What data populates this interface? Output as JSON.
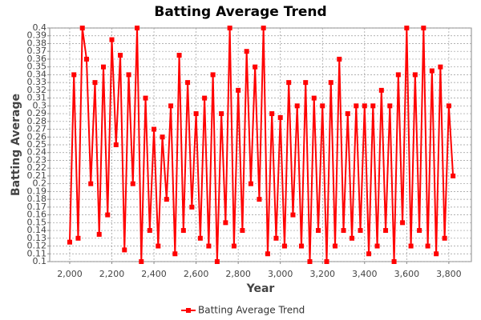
{
  "chart_data": {
    "type": "line",
    "title": "Batting Average Trend",
    "xlabel": "Year",
    "ylabel": "Batting Average",
    "x": [
      2000,
      2020,
      2040,
      2060,
      2080,
      2100,
      2120,
      2140,
      2160,
      2180,
      2200,
      2220,
      2240,
      2260,
      2280,
      2300,
      2320,
      2340,
      2360,
      2380,
      2400,
      2420,
      2440,
      2460,
      2480,
      2500,
      2520,
      2540,
      2560,
      2580,
      2600,
      2620,
      2640,
      2660,
      2680,
      2700,
      2720,
      2740,
      2760,
      2780,
      2800,
      2820,
      2840,
      2860,
      2880,
      2900,
      2920,
      2940,
      2960,
      2980,
      3000,
      3020,
      3040,
      3060,
      3080,
      3100,
      3120,
      3140,
      3160,
      3180,
      3200,
      3220,
      3240,
      3260,
      3280,
      3300,
      3320,
      3340,
      3360,
      3380,
      3400,
      3420,
      3440,
      3460,
      3480,
      3500,
      3520,
      3540,
      3560,
      3580,
      3600,
      3620,
      3640,
      3660,
      3680,
      3700,
      3720,
      3740,
      3760,
      3780,
      3800,
      3820
    ],
    "series": [
      {
        "name": "Batting Average Trend",
        "color": "#ff0000",
        "values": [
          0.125,
          0.34,
          0.13,
          0.4,
          0.36,
          0.2,
          0.33,
          0.135,
          0.35,
          0.16,
          0.385,
          0.25,
          0.365,
          0.115,
          0.34,
          0.2,
          0.4,
          0.1,
          0.31,
          0.14,
          0.27,
          0.12,
          0.26,
          0.18,
          0.3,
          0.11,
          0.365,
          0.14,
          0.33,
          0.17,
          0.29,
          0.13,
          0.31,
          0.12,
          0.34,
          0.1,
          0.29,
          0.15,
          0.4,
          0.12,
          0.32,
          0.14,
          0.37,
          0.2,
          0.35,
          0.18,
          0.4,
          0.11,
          0.29,
          0.13,
          0.285,
          0.12,
          0.33,
          0.16,
          0.3,
          0.12,
          0.33,
          0.1,
          0.31,
          0.14,
          0.3,
          0.1,
          0.33,
          0.12,
          0.36,
          0.14,
          0.29,
          0.13,
          0.3,
          0.14,
          0.3,
          0.11,
          0.3,
          0.12,
          0.32,
          0.14,
          0.3,
          0.1,
          0.34,
          0.15,
          0.4,
          0.12,
          0.34,
          0.14,
          0.4,
          0.12,
          0.345,
          0.11,
          0.35,
          0.13,
          0.3,
          0.21
        ]
      }
    ],
    "xlim": [
      1905,
      3907
    ],
    "xticks": [
      {
        "value": 2000,
        "label": "2,000"
      },
      {
        "value": 2200,
        "label": "2,200"
      },
      {
        "value": 2400,
        "label": "2,400"
      },
      {
        "value": 2600,
        "label": "2,600"
      },
      {
        "value": 2800,
        "label": "2,800"
      },
      {
        "value": 3000,
        "label": "3,000"
      },
      {
        "value": 3200,
        "label": "3,200"
      },
      {
        "value": 3400,
        "label": "3,400"
      },
      {
        "value": 3600,
        "label": "3,600"
      },
      {
        "value": 3800,
        "label": "3,800"
      }
    ],
    "ylim": [
      0.1,
      0.4
    ],
    "yticks": [
      0.1,
      0.11,
      0.12,
      0.13,
      0.14,
      0.15,
      0.16,
      0.17,
      0.18,
      0.19,
      0.2,
      0.21,
      0.22,
      0.23,
      0.24,
      0.25,
      0.26,
      0.27,
      0.28,
      0.29,
      0.3,
      0.31,
      0.32,
      0.33,
      0.34,
      0.35,
      0.36,
      0.37,
      0.38,
      0.39,
      0.4
    ],
    "grid": true,
    "legend": "bottom"
  }
}
